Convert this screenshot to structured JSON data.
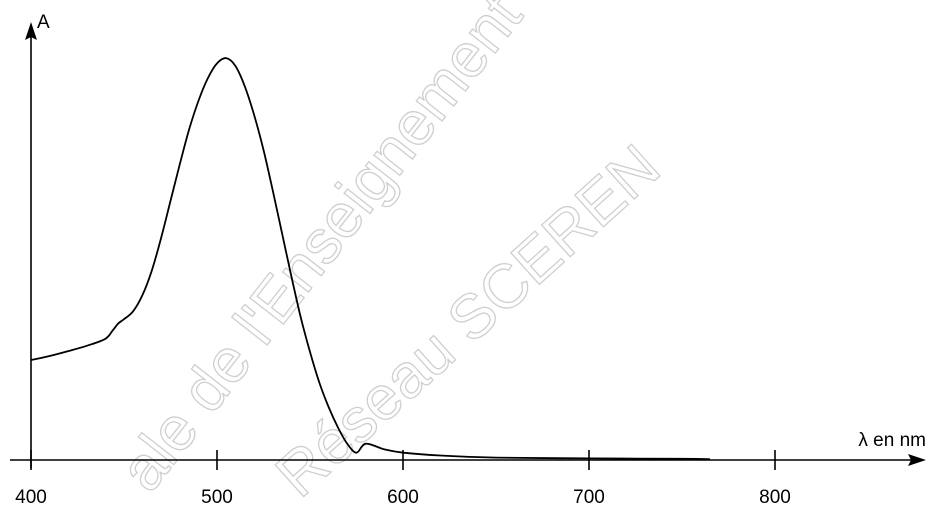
{
  "chart_data": {
    "type": "line",
    "title": "",
    "xlabel": "λ en nm",
    "ylabel": "A",
    "xlim": [
      400,
      850
    ],
    "ylim": [
      0,
      1.0
    ],
    "x_ticks": [
      400,
      500,
      600,
      700,
      800
    ],
    "grid": false,
    "legend": "none",
    "series": [
      {
        "x": [
          400,
          410,
          420,
          430,
          440,
          444,
          447,
          450,
          455,
          460,
          465,
          470,
          475,
          480,
          485,
          490,
          495,
          500,
          505,
          510,
          515,
          520,
          525,
          530,
          535,
          540,
          545,
          550,
          555,
          560,
          565,
          570,
          575,
          580,
          590,
          600,
          620,
          650,
          700,
          750,
          765
        ],
        "y": [
          0.245,
          0.255,
          0.267,
          0.28,
          0.297,
          0.318,
          0.335,
          0.345,
          0.365,
          0.405,
          0.465,
          0.545,
          0.635,
          0.725,
          0.81,
          0.88,
          0.935,
          0.972,
          0.985,
          0.965,
          0.915,
          0.845,
          0.76,
          0.66,
          0.555,
          0.45,
          0.35,
          0.265,
          0.19,
          0.13,
          0.08,
          0.04,
          0.018,
          0.04,
          0.026,
          0.018,
          0.011,
          0.006,
          0.004,
          0.003,
          0.002
        ],
        "color": "#000000"
      }
    ]
  },
  "watermark": {
    "line1": "ale de l'Enseignement P",
    "line2": "Réseau SCEREN"
  }
}
